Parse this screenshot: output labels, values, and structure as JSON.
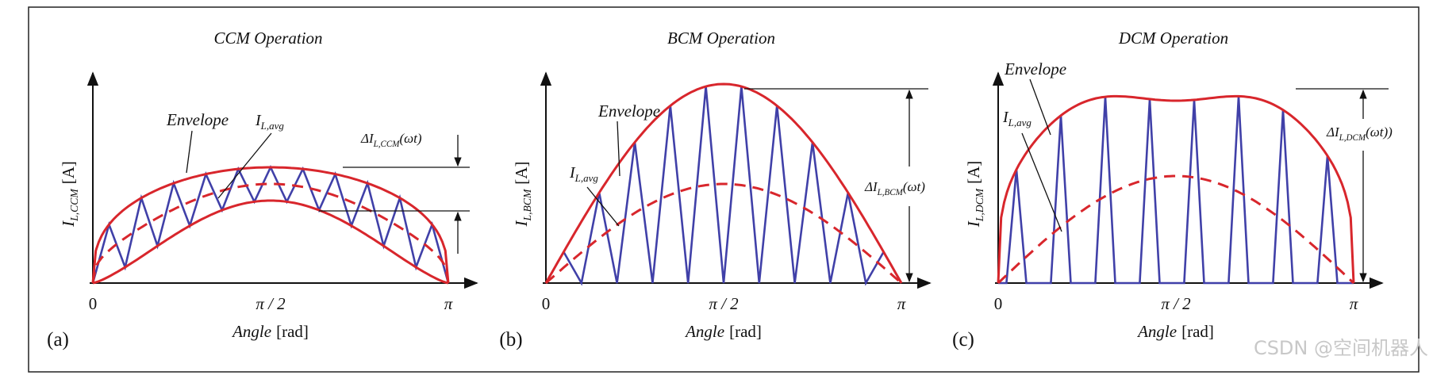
{
  "panels": [
    {
      "title": "CCM Operation",
      "envelope": "Envelope",
      "avg": {
        "main": "I",
        "sub": "L,avg"
      },
      "delta": {
        "main": "ΔI",
        "sub": "L,CCM",
        "tail": "(ωt)"
      },
      "y_label": {
        "main": "I",
        "sub": "L,CCM",
        "unit": "[A]"
      },
      "x_ticks": [
        "0",
        "π / 2",
        "π"
      ],
      "x_label": {
        "main": "Angle",
        "unit": "[rad]"
      },
      "tag": "(a)"
    },
    {
      "title": "BCM Operation",
      "envelope": "Envelope",
      "avg": {
        "main": "I",
        "sub": "L,avg"
      },
      "delta": {
        "main": "ΔI",
        "sub": "L,BCM",
        "tail": "(ωt)"
      },
      "y_label": {
        "main": "I",
        "sub": "L,BCM",
        "unit": "[A]"
      },
      "x_ticks": [
        "0",
        "π / 2",
        "π"
      ],
      "x_label": {
        "main": "Angle",
        "unit": "[rad]"
      },
      "tag": "(b)"
    },
    {
      "title": "DCM Operation",
      "envelope": "Envelope",
      "avg": {
        "main": "I",
        "sub": "L,avg"
      },
      "delta": {
        "main": "ΔI",
        "sub": "L,DCM",
        "tail": "(ωt))"
      },
      "y_label": {
        "main": "I",
        "sub": "L,DCM",
        "unit": "[A]"
      },
      "x_ticks": [
        "0",
        "π / 2",
        "π"
      ],
      "x_label": {
        "main": "Angle",
        "unit": "[rad]"
      },
      "tag": "(c)"
    }
  ],
  "watermark": "CSDN @空间机器人"
}
